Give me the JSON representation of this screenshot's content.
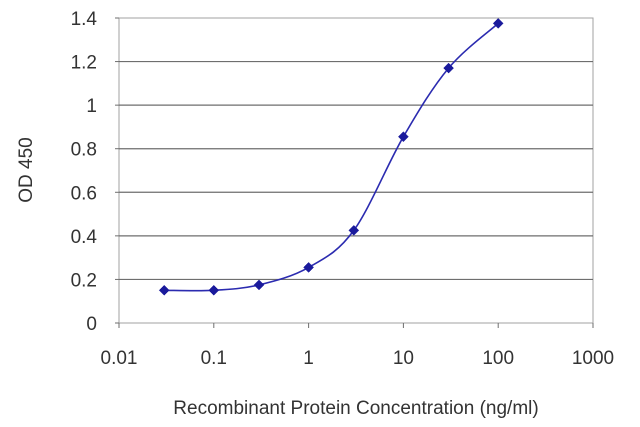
{
  "chart_data": {
    "type": "scatter",
    "title": "",
    "xlabel": "Recombinant Protein Concentration (ng/ml)",
    "ylabel": "OD 450",
    "x_scale": "log",
    "xlim": [
      0.01,
      1000
    ],
    "ylim": [
      0,
      1.4
    ],
    "x_ticks": [
      0.01,
      0.1,
      1,
      10,
      100,
      1000
    ],
    "x_tick_labels": [
      "0.01",
      "0.1",
      "1",
      "10",
      "100",
      "1000"
    ],
    "y_ticks": [
      0,
      0.2,
      0.4,
      0.6,
      0.8,
      1,
      1.2,
      1.4
    ],
    "y_tick_labels": [
      "0",
      "0.2",
      "0.4",
      "0.6",
      "0.8",
      "1",
      "1.2",
      "1.4"
    ],
    "grid": "horizontal",
    "legend": "none",
    "series": [
      {
        "x": [
          0.03,
          0.1,
          0.3,
          1,
          3,
          10,
          30,
          100
        ],
        "y": [
          0.15,
          0.15,
          0.175,
          0.255,
          0.425,
          0.855,
          1.17,
          1.375
        ],
        "color": "#1a1a9c",
        "line": "smooth-fit",
        "marker": "diamond"
      }
    ]
  }
}
